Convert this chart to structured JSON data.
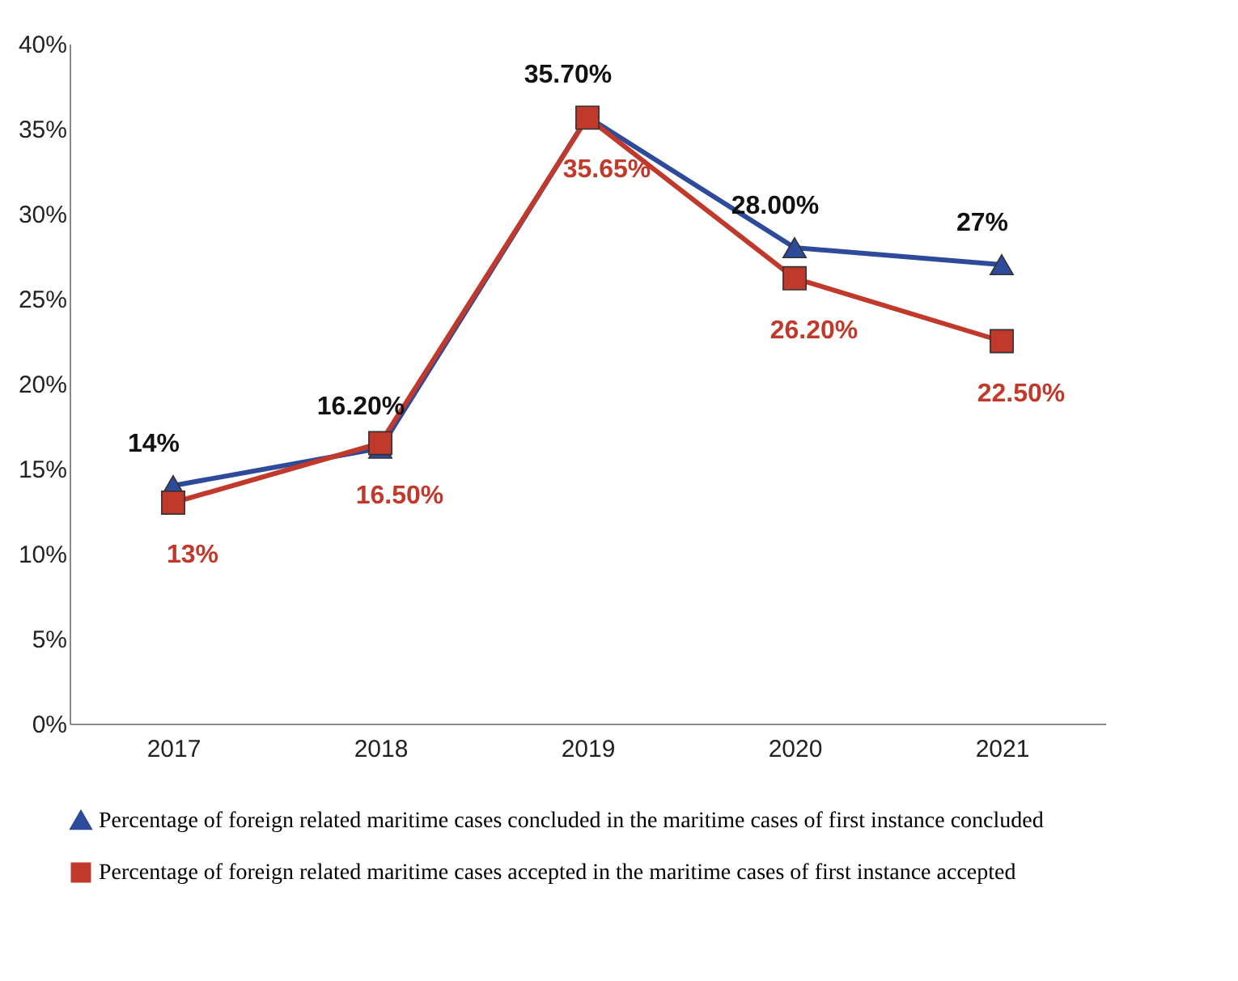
{
  "chart_data": {
    "type": "line",
    "categories": [
      "2017",
      "2018",
      "2019",
      "2020",
      "2021"
    ],
    "series": [
      {
        "name": "Percentage of foreign related maritime cases concluded in the maritime cases of first instance concluded",
        "color": "#2e4a9a",
        "marker": "triangle",
        "values": [
          14,
          16.2,
          35.7,
          28,
          27
        ],
        "value_labels": [
          "14%",
          "16.20%",
          "35.70%",
          "28.00%",
          "27%"
        ]
      },
      {
        "name": "Percentage of foreign related maritime cases accepted in the maritime cases of first instance accepted",
        "color": "#c0392b",
        "marker": "square",
        "values": [
          13,
          16.5,
          35.65,
          26.2,
          22.5
        ],
        "value_labels": [
          "13%",
          "16.50%",
          "35.65%",
          "26.20%",
          "22.50%"
        ]
      }
    ],
    "ylim": [
      0,
      40
    ],
    "yticks": [
      {
        "value": 0,
        "label": "0%"
      },
      {
        "value": 5,
        "label": "5%"
      },
      {
        "value": 10,
        "label": "10%"
      },
      {
        "value": 15,
        "label": "15%"
      },
      {
        "value": 20,
        "label": "20%"
      },
      {
        "value": 25,
        "label": "25%"
      },
      {
        "value": 30,
        "label": "30%"
      },
      {
        "value": 35,
        "label": "35%"
      },
      {
        "value": 40,
        "label": "40%"
      }
    ],
    "grid": false,
    "legend": "bottom"
  }
}
